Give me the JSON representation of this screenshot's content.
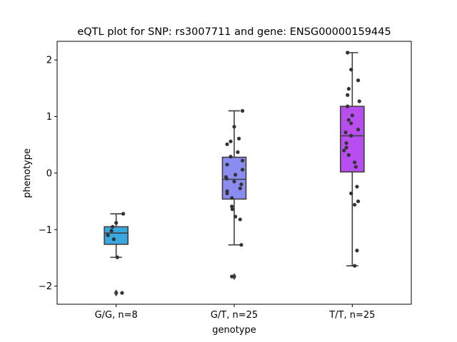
{
  "chart_data": {
    "type": "box",
    "title": "eQTL plot for SNP: rs3007711 and gene: ENSG00000159445",
    "xlabel": "genotype",
    "ylabel": "phenotype",
    "ylim": [
      -2.32,
      2.33
    ],
    "yticks": [
      -2,
      -1,
      0,
      1,
      2
    ],
    "yticklabels": [
      "−2",
      "−1",
      "0",
      "1",
      "2"
    ],
    "grid": false,
    "categories": [
      "G/G, n=8",
      "G/T, n=25",
      "T/T, n=25"
    ],
    "colors": [
      "#3aa8e0",
      "#8a8cf0",
      "#b84ef0"
    ],
    "boxes": [
      {
        "q1": -1.26,
        "median": -1.06,
        "q3": -0.95,
        "whisker_low": -1.49,
        "whisker_high": -0.72,
        "outliers": [
          -2.12
        ]
      },
      {
        "q1": -0.46,
        "median": -0.11,
        "q3": 0.28,
        "whisker_low": -1.27,
        "whisker_high": 1.1,
        "outliers": [
          -1.83
        ]
      },
      {
        "q1": 0.02,
        "median": 0.66,
        "q3": 1.18,
        "whisker_low": -1.64,
        "whisker_high": 2.13,
        "outliers": []
      }
    ],
    "points": [
      [
        -0.72,
        -0.88,
        -0.95,
        -1.02,
        -1.1,
        -1.17,
        -1.49,
        -2.12
      ],
      [
        1.1,
        0.82,
        0.61,
        0.56,
        0.51,
        0.37,
        0.29,
        0.22,
        0.15,
        0.06,
        -0.03,
        -0.07,
        -0.1,
        -0.15,
        -0.2,
        -0.27,
        -0.32,
        -0.36,
        -0.44,
        -0.59,
        -0.64,
        -0.77,
        -0.82,
        -1.27,
        -1.83
      ],
      [
        2.13,
        1.83,
        1.64,
        1.49,
        1.38,
        1.27,
        1.18,
        1.02,
        0.94,
        0.88,
        0.77,
        0.72,
        0.66,
        0.53,
        0.45,
        0.4,
        0.32,
        0.19,
        0.11,
        -0.24,
        -0.36,
        -0.5,
        -0.56,
        -1.37,
        -1.64
      ]
    ],
    "jitter": [
      [
        0.3,
        0.0,
        -0.15,
        -0.2,
        -0.35,
        -0.1,
        0.05,
        0.25
      ],
      [
        0.35,
        0.0,
        0.2,
        -0.15,
        -0.3,
        0.15,
        -0.15,
        0.35,
        -0.3,
        0.35,
        0.05,
        -0.35,
        -0.32,
        0.0,
        0.3,
        0.25,
        -0.3,
        -0.3,
        -0.1,
        -0.1,
        -0.08,
        0.05,
        0.25,
        0.3,
        -0.1
      ],
      [
        -0.2,
        -0.05,
        0.25,
        -0.15,
        -0.2,
        0.3,
        -0.2,
        0.0,
        -0.15,
        -0.05,
        0.25,
        -0.28,
        -0.05,
        -0.25,
        -0.25,
        -0.35,
        -0.15,
        0.1,
        0.15,
        0.2,
        -0.05,
        0.25,
        0.1,
        0.2,
        0.1
      ]
    ]
  }
}
